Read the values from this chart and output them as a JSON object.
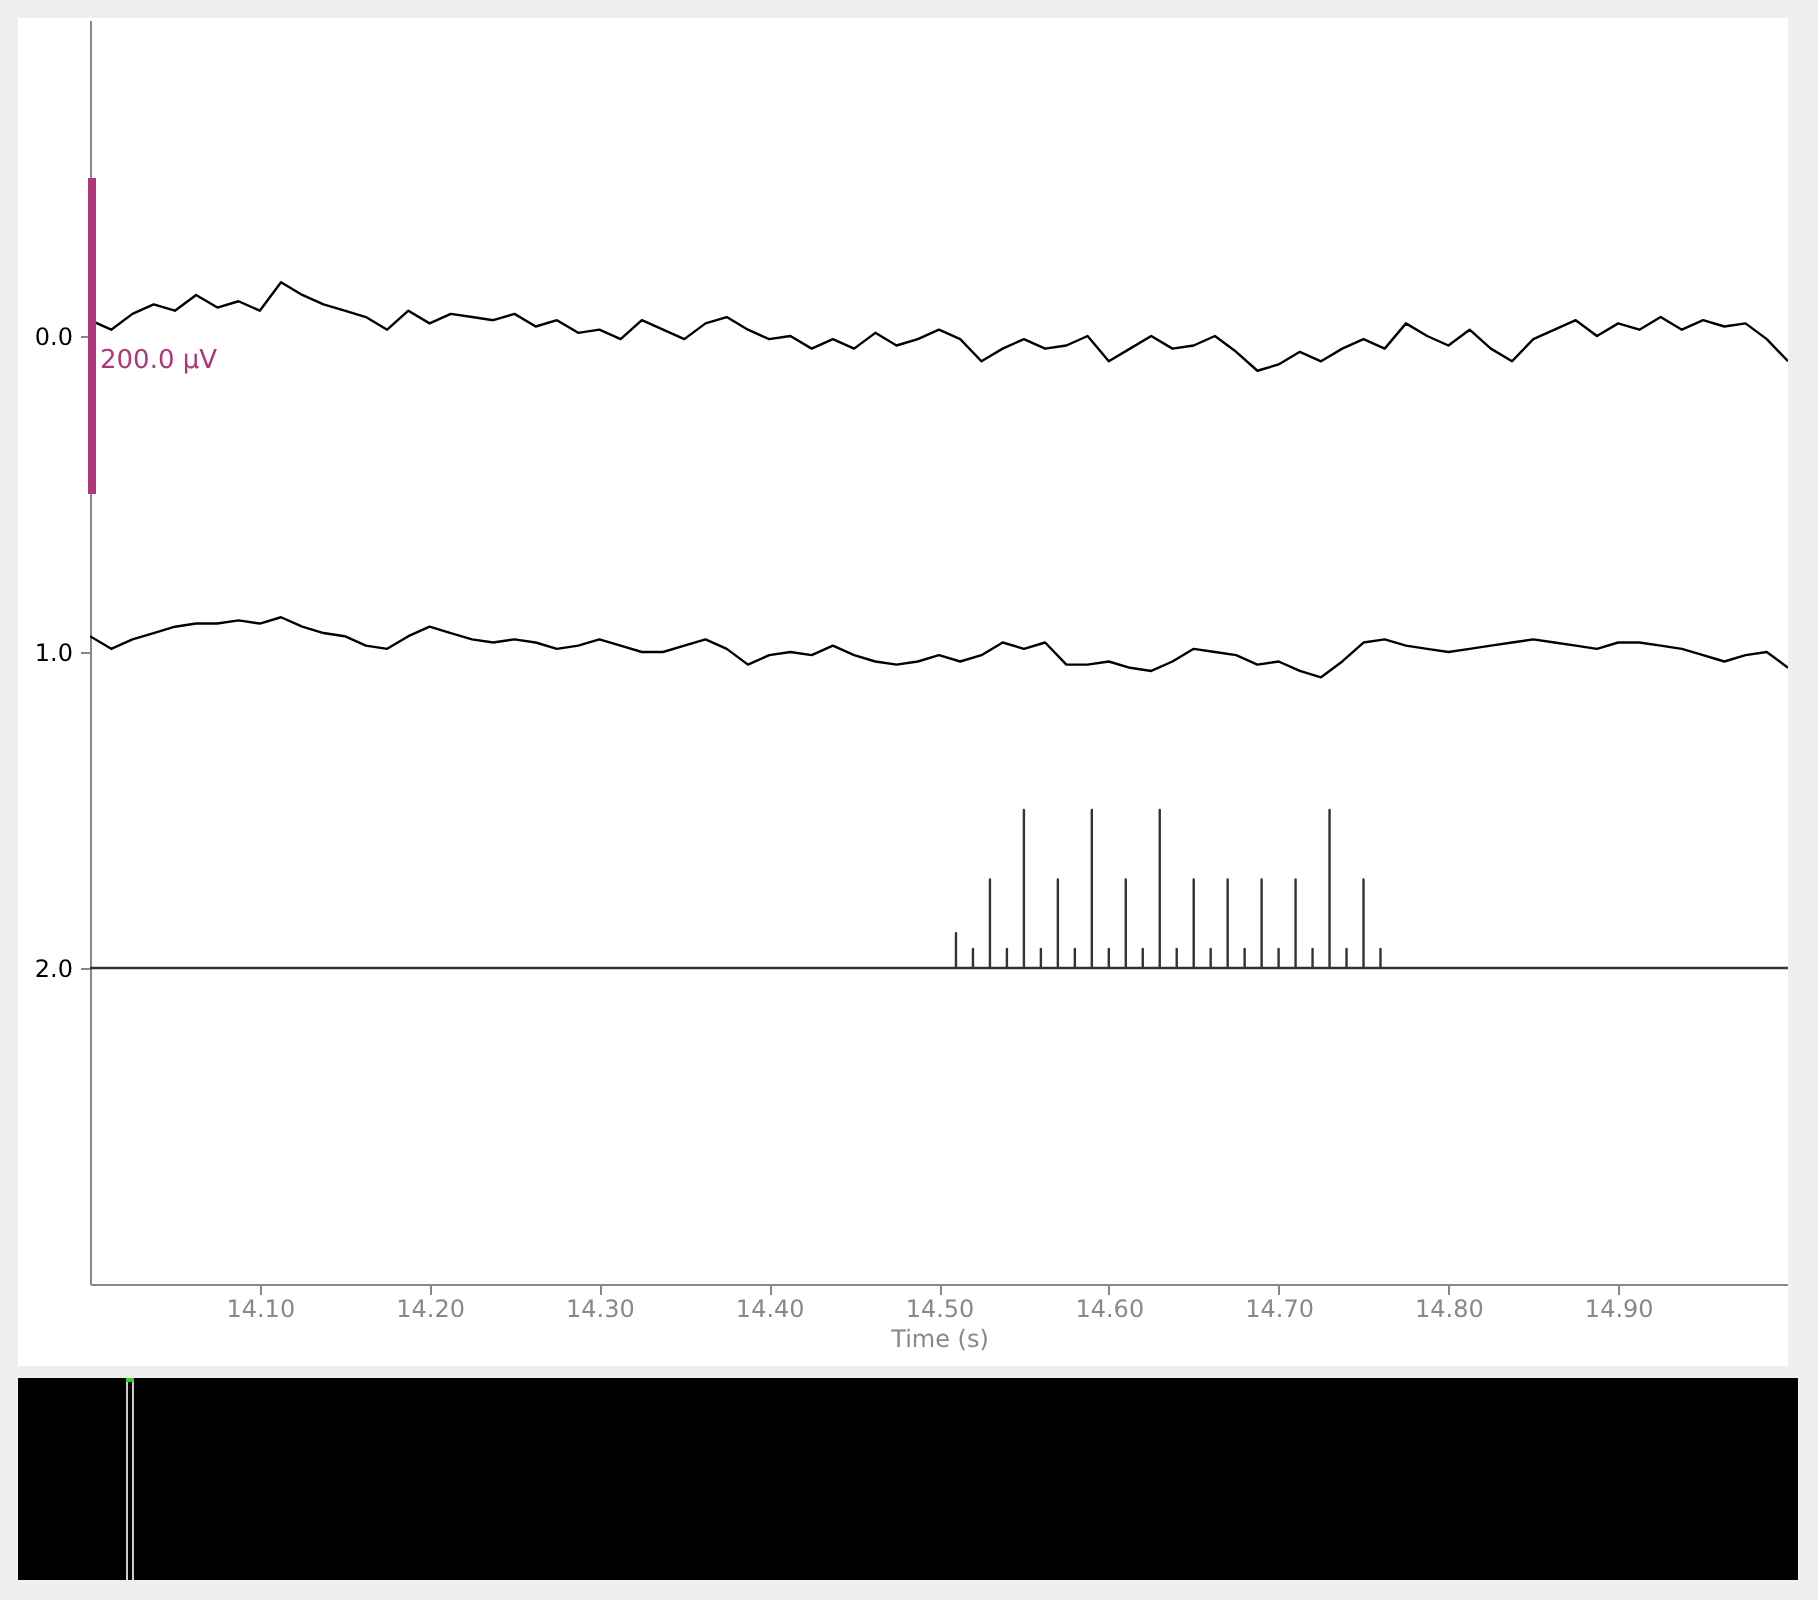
{
  "chart_data": {
    "type": "line",
    "xlabel": "Time (s)",
    "xlim": [
      14.0,
      15.0
    ],
    "xticks": [
      {
        "value": 14.1,
        "label": "14.10"
      },
      {
        "value": 14.2,
        "label": "14.20"
      },
      {
        "value": 14.3,
        "label": "14.30"
      },
      {
        "value": 14.4,
        "label": "14.40"
      },
      {
        "value": 14.5,
        "label": "14.50"
      },
      {
        "value": 14.6,
        "label": "14.60"
      },
      {
        "value": 14.7,
        "label": "14.70"
      },
      {
        "value": 14.8,
        "label": "14.80"
      },
      {
        "value": 14.9,
        "label": "14.90"
      }
    ],
    "ylim": [
      3,
      -1
    ],
    "yticks": [
      {
        "value": 0,
        "label": "0.0"
      },
      {
        "value": 1,
        "label": "1.0"
      },
      {
        "value": 2,
        "label": "2.0"
      }
    ],
    "grid": false,
    "line_style": "solid",
    "x": [
      14.0,
      14.0125,
      14.025,
      14.0375,
      14.05,
      14.0625,
      14.075,
      14.0875,
      14.1,
      14.1125,
      14.125,
      14.1375,
      14.15,
      14.1625,
      14.175,
      14.1875,
      14.2,
      14.2125,
      14.225,
      14.2375,
      14.25,
      14.2625,
      14.275,
      14.2875,
      14.3,
      14.3125,
      14.325,
      14.3375,
      14.35,
      14.3625,
      14.375,
      14.3875,
      14.4,
      14.4125,
      14.425,
      14.4375,
      14.45,
      14.4625,
      14.475,
      14.4875,
      14.5,
      14.5125,
      14.525,
      14.5375,
      14.55,
      14.5625,
      14.575,
      14.5875,
      14.6,
      14.6125,
      14.625,
      14.6375,
      14.65,
      14.6625,
      14.675,
      14.6875,
      14.7,
      14.7125,
      14.725,
      14.7375,
      14.75,
      14.7625,
      14.775,
      14.7875,
      14.8,
      14.8125,
      14.825,
      14.8375,
      14.85,
      14.8625,
      14.875,
      14.8875,
      14.9,
      14.9125,
      14.925,
      14.9375,
      14.95,
      14.9625,
      14.975,
      14.9875,
      15.0
    ],
    "series": [
      {
        "color": "#000000",
        "values": [
          -0.05,
          -0.02,
          -0.07,
          -0.1,
          -0.08,
          -0.13,
          -0.09,
          -0.11,
          -0.08,
          -0.17,
          -0.13,
          -0.1,
          -0.08,
          -0.06,
          -0.02,
          -0.08,
          -0.04,
          -0.07,
          -0.06,
          -0.05,
          -0.07,
          -0.03,
          -0.05,
          -0.01,
          -0.02,
          0.01,
          -0.05,
          -0.02,
          0.01,
          -0.04,
          -0.06,
          -0.02,
          0.01,
          0.0,
          0.04,
          0.01,
          0.04,
          -0.01,
          0.03,
          0.01,
          -0.02,
          0.01,
          0.08,
          0.04,
          0.01,
          0.04,
          0.03,
          0.0,
          0.08,
          0.04,
          0.0,
          0.04,
          0.03,
          0.0,
          0.05,
          0.11,
          0.09,
          0.05,
          0.08,
          0.04,
          0.01,
          0.04,
          -0.04,
          0.0,
          0.03,
          -0.02,
          0.04,
          0.08,
          0.01,
          -0.02,
          -0.05,
          0.0,
          -0.04,
          -0.02,
          -0.06,
          -0.02,
          -0.05,
          -0.03,
          -0.04,
          0.01,
          0.08
        ]
      },
      {
        "color": "#000000",
        "values": [
          0.95,
          0.99,
          0.96,
          0.94,
          0.92,
          0.91,
          0.91,
          0.9,
          0.91,
          0.89,
          0.92,
          0.94,
          0.95,
          0.98,
          0.99,
          0.95,
          0.92,
          0.94,
          0.96,
          0.97,
          0.96,
          0.97,
          0.99,
          0.98,
          0.96,
          0.98,
          1.0,
          1.0,
          0.98,
          0.96,
          0.99,
          1.04,
          1.01,
          1.0,
          1.01,
          0.98,
          1.01,
          1.03,
          1.04,
          1.03,
          1.01,
          1.03,
          1.01,
          0.97,
          0.99,
          0.97,
          1.04,
          1.04,
          1.03,
          1.05,
          1.06,
          1.03,
          0.99,
          1.0,
          1.01,
          1.04,
          1.03,
          1.06,
          1.08,
          1.03,
          0.97,
          0.96,
          0.98,
          0.99,
          1.0,
          0.99,
          0.98,
          0.97,
          0.96,
          0.97,
          0.98,
          0.99,
          0.97,
          0.97,
          0.98,
          0.99,
          1.01,
          1.03,
          1.01,
          1.0,
          1.05
        ]
      },
      {
        "color": "#333333",
        "x": [
          14.0,
          14.51,
          14.51,
          14.51,
          14.52,
          14.52,
          14.52,
          14.53,
          14.53,
          14.53,
          14.54,
          14.54,
          14.54,
          14.55,
          14.55,
          14.55,
          14.56,
          14.56,
          14.56,
          14.57,
          14.57,
          14.57,
          14.58,
          14.58,
          14.58,
          14.59,
          14.59,
          14.59,
          14.6,
          14.6,
          14.6,
          14.61,
          14.61,
          14.61,
          14.62,
          14.62,
          14.62,
          14.63,
          14.63,
          14.63,
          14.64,
          14.64,
          14.64,
          14.65,
          14.65,
          14.65,
          14.66,
          14.66,
          14.66,
          14.67,
          14.67,
          14.67,
          14.68,
          14.68,
          14.68,
          14.69,
          14.69,
          14.69,
          14.7,
          14.7,
          14.7,
          14.71,
          14.71,
          14.71,
          14.72,
          14.72,
          14.72,
          14.73,
          14.73,
          14.73,
          14.74,
          14.74,
          14.74,
          14.75,
          14.75,
          14.75,
          14.76,
          14.76,
          14.76,
          15.0
        ],
        "values": [
          2,
          2,
          1.89,
          2,
          2,
          1.94,
          2,
          2,
          1.72,
          2,
          2,
          1.94,
          2,
          2,
          1.5,
          2,
          2,
          1.94,
          2,
          2,
          1.72,
          2,
          2,
          1.94,
          2,
          2,
          1.5,
          2,
          2,
          1.94,
          2,
          2,
          1.72,
          2,
          2,
          1.94,
          2,
          2,
          1.5,
          2,
          2,
          1.94,
          2,
          2,
          1.72,
          2,
          2,
          1.94,
          2,
          2,
          1.72,
          2,
          2,
          1.94,
          2,
          2,
          1.72,
          2,
          2,
          1.94,
          2,
          2,
          1.72,
          2,
          2,
          1.94,
          2,
          2,
          1.5,
          2,
          2,
          1.94,
          2,
          2,
          1.72,
          2,
          2,
          1.94,
          2,
          2
        ]
      }
    ],
    "annotations": [
      "200.0 µV"
    ]
  }
}
